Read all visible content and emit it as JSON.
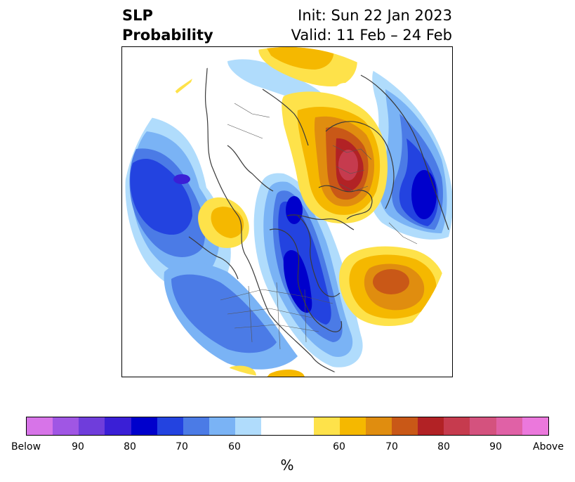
{
  "header": {
    "title_line1": "SLP",
    "title_line2": "Probability",
    "init_text": "Init: Sun 22 Jan 2023",
    "valid_text": "Valid: 11 Feb – 24 Feb"
  },
  "colorbar": {
    "unit": "%",
    "tick_labels": [
      "Below",
      "90",
      "80",
      "70",
      "60",
      "60",
      "70",
      "80",
      "90",
      "Above"
    ],
    "below_colors": [
      "#d774e8",
      "#a056e4",
      "#6f3ddb",
      "#3a1fd6",
      "#0000cc",
      "#2343e0",
      "#4b7be6",
      "#7ab3f5",
      "#b0dcfc"
    ],
    "neutral_color": "#ffffff",
    "above_colors": [
      "#fee24a",
      "#f5b800",
      "#e08d0f",
      "#c95817",
      "#b22225",
      "#c63b4e",
      "#d4527e",
      "#e061a6",
      "#eb78dc"
    ]
  },
  "map": {
    "projection": "polar-stereographic",
    "coastline_color": "#3a3a3a"
  }
}
